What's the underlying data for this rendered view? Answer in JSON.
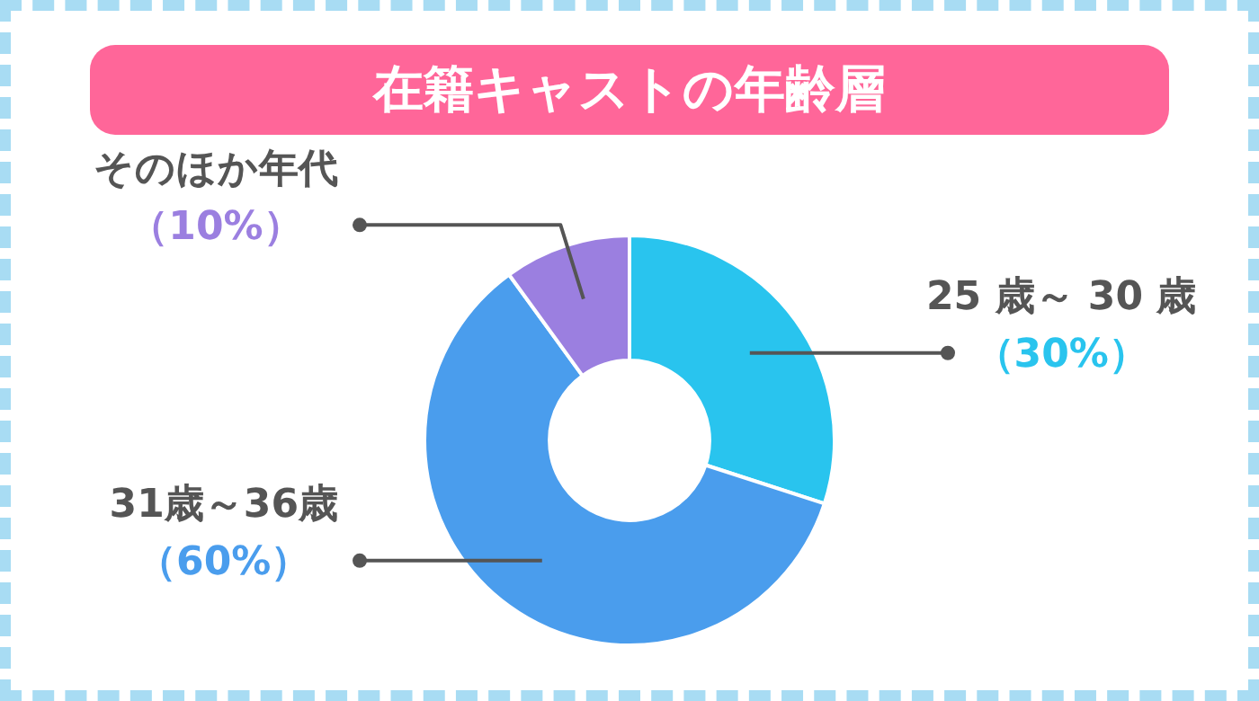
{
  "chart_data": {
    "type": "donut",
    "title": "在籍キャストの年齢層",
    "categories": [
      "25 歳～ 30 歳",
      "31歳～36歳",
      "そのほか年代"
    ],
    "values": [
      30,
      60,
      10
    ],
    "colors": [
      "#29c4ee",
      "#4a9ded",
      "#9b7fe0"
    ],
    "value_labels": [
      "（30%）",
      "（60%）",
      "（10%）"
    ],
    "legend": false
  }
}
